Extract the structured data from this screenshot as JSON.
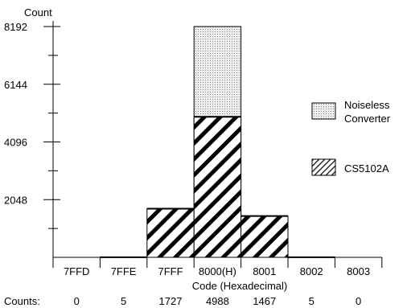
{
  "chart_data": {
    "type": "bar",
    "ylabel": "Count",
    "xlabel": "Code  (Hexadecimal)",
    "ylim": [
      0,
      8192
    ],
    "yticks": [
      "2048",
      "4096",
      "6144",
      "8192"
    ],
    "categories": [
      "7FFD",
      "7FFE",
      "7FFF",
      "8000(H)",
      "8001",
      "8002",
      "8003"
    ],
    "counts_label": "Counts:",
    "series": [
      {
        "name": "CS5102A",
        "values": [
          0,
          5,
          1727,
          4988,
          1467,
          5,
          0
        ]
      },
      {
        "name": "Noiseless Converter",
        "values": [
          0,
          0,
          0,
          8192,
          0,
          0,
          0
        ]
      }
    ],
    "counts_row": [
      "0",
      "5",
      "1727",
      "4988",
      "1467",
      "5",
      "0"
    ],
    "legend": [
      {
        "lines": [
          "Noiseless",
          "Converter"
        ],
        "fill": "dotted",
        "color": "#dcdcdc"
      },
      {
        "lines": [
          "CS5102A"
        ],
        "fill": "hatched",
        "color": "#000000"
      }
    ],
    "legend_placement": "right",
    "grid": false
  }
}
